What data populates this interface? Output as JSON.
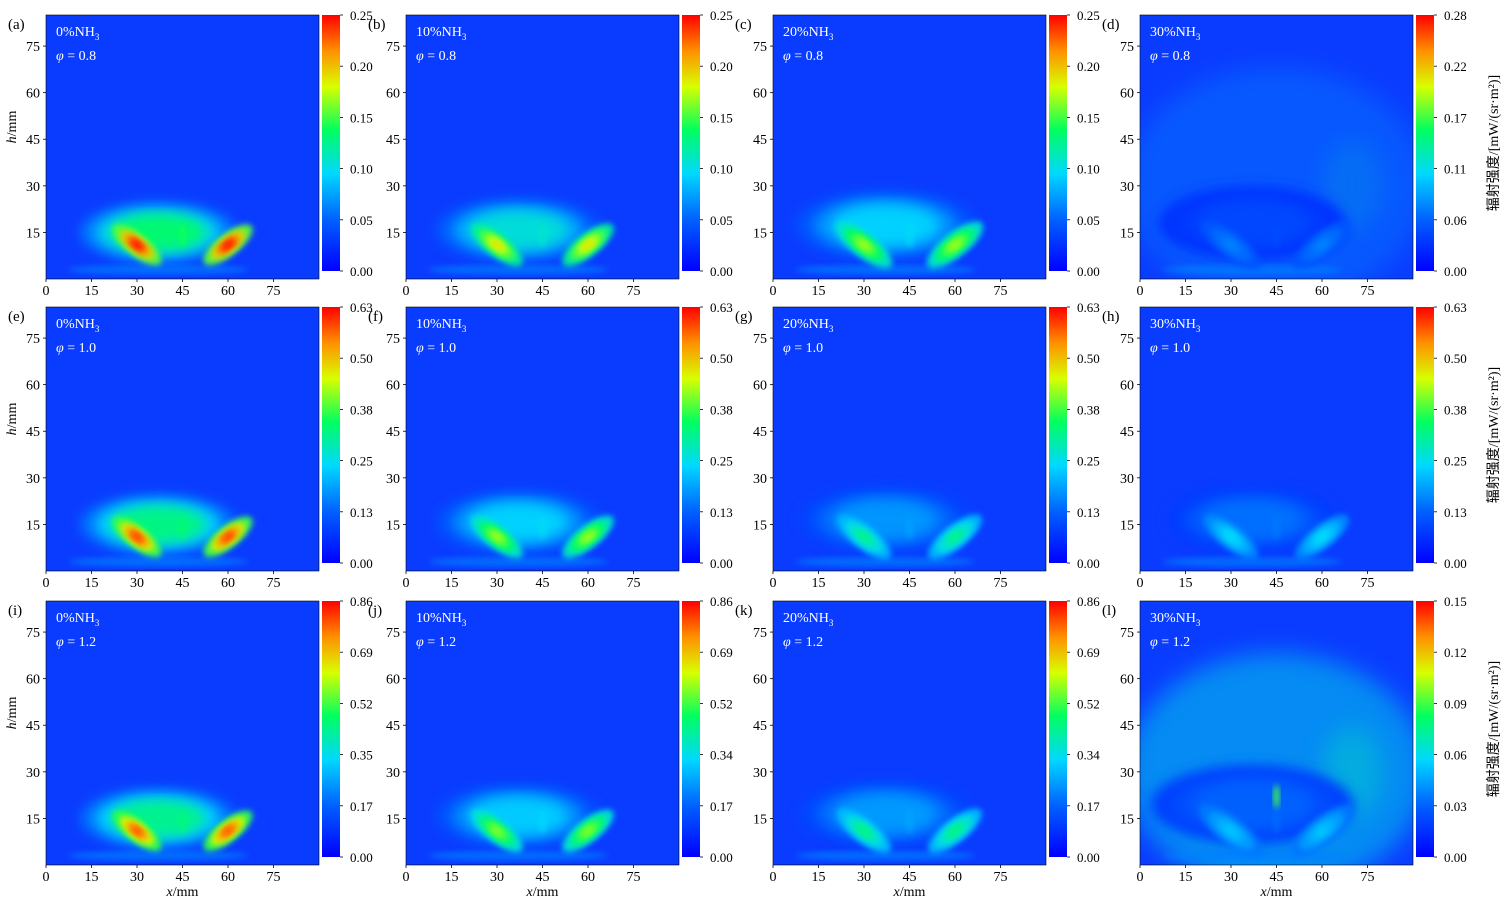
{
  "chart_data": {
    "type": "heatmap",
    "description_axes": {
      "xlabel": "x/mm",
      "ylabel": "h/mm"
    },
    "x_ticks": [
      0,
      15,
      30,
      45,
      60,
      75
    ],
    "y_ticks": [
      15,
      30,
      45,
      60,
      75
    ],
    "xlim": [
      0,
      90
    ],
    "ylim": [
      0,
      85
    ],
    "colorbar_label": "辐射强度/[mW/(sr·m²)]",
    "colormap": [
      "#0000ff",
      "#00c8ff",
      "#00ff66",
      "#ffff00",
      "#ff8800",
      "#ff0000"
    ],
    "panels": [
      {
        "label": "(a)",
        "nh3": "0%NH",
        "nh3_sub": "3",
        "phi": "= 0.8",
        "cbar": [
          "0.00",
          "0.05",
          "0.10",
          "0.15",
          "0.20",
          "0.25"
        ],
        "row": 0,
        "col": 0,
        "peak": 0.92,
        "spread": 1.0,
        "diffuse": 0.0,
        "show_cbar_label": false,
        "show_ylabel": true,
        "show_xlabel": false
      },
      {
        "label": "(b)",
        "nh3": "10%NH",
        "nh3_sub": "3",
        "phi": "= 0.8",
        "cbar": [
          "0.00",
          "0.05",
          "0.10",
          "0.15",
          "0.20",
          "0.25"
        ],
        "row": 0,
        "col": 1,
        "peak": 0.7,
        "spread": 1.05,
        "diffuse": 0.0,
        "show_cbar_label": false,
        "show_ylabel": false,
        "show_xlabel": false
      },
      {
        "label": "(c)",
        "nh3": "20%NH",
        "nh3_sub": "3",
        "phi": "= 0.8",
        "cbar": [
          "0.00",
          "0.05",
          "0.10",
          "0.15",
          "0.20",
          "0.25"
        ],
        "row": 0,
        "col": 2,
        "peak": 0.62,
        "spread": 1.15,
        "diffuse": 0.0,
        "show_cbar_label": false,
        "show_ylabel": false,
        "show_xlabel": false
      },
      {
        "label": "(d)",
        "nh3": "30%NH",
        "nh3_sub": "3",
        "phi": "= 0.8",
        "cbar": [
          "0.00",
          "0.06",
          "0.11",
          "0.17",
          "0.22",
          "0.28"
        ],
        "row": 0,
        "col": 3,
        "peak": 0.2,
        "spread": 1.2,
        "diffuse": 0.15,
        "show_cbar_label": true,
        "show_ylabel": false,
        "show_xlabel": false
      },
      {
        "label": "(e)",
        "nh3": "0%NH",
        "nh3_sub": "3",
        "phi": "= 1.0",
        "cbar": [
          "0.00",
          "0.13",
          "0.25",
          "0.38",
          "0.50",
          "0.63"
        ],
        "row": 1,
        "col": 0,
        "peak": 0.88,
        "spread": 1.0,
        "diffuse": 0.0,
        "show_cbar_label": false,
        "show_ylabel": true,
        "show_xlabel": false
      },
      {
        "label": "(f)",
        "nh3": "10%NH",
        "nh3_sub": "3",
        "phi": "= 1.0",
        "cbar": [
          "0.00",
          "0.13",
          "0.25",
          "0.38",
          "0.50",
          "0.63"
        ],
        "row": 1,
        "col": 1,
        "peak": 0.62,
        "spread": 1.05,
        "diffuse": 0.0,
        "show_cbar_label": false,
        "show_ylabel": false,
        "show_xlabel": false
      },
      {
        "label": "(g)",
        "nh3": "20%NH",
        "nh3_sub": "3",
        "phi": "= 1.0",
        "cbar": [
          "0.00",
          "0.13",
          "0.25",
          "0.38",
          "0.50",
          "0.63"
        ],
        "row": 1,
        "col": 2,
        "peak": 0.45,
        "spread": 1.1,
        "diffuse": 0.0,
        "show_cbar_label": false,
        "show_ylabel": false,
        "show_xlabel": false
      },
      {
        "label": "(h)",
        "nh3": "30%NH",
        "nh3_sub": "3",
        "phi": "= 1.0",
        "cbar": [
          "0.00",
          "0.13",
          "0.25",
          "0.38",
          "0.50",
          "0.63"
        ],
        "row": 1,
        "col": 3,
        "peak": 0.34,
        "spread": 1.1,
        "diffuse": 0.0,
        "show_cbar_label": true,
        "show_ylabel": false,
        "show_xlabel": false
      },
      {
        "label": "(i)",
        "nh3": "0%NH",
        "nh3_sub": "3",
        "phi": "= 1.2",
        "cbar": [
          "0.00",
          "0.17",
          "0.35",
          "0.52",
          "0.69",
          "0.86"
        ],
        "row": 2,
        "col": 0,
        "peak": 0.86,
        "spread": 1.0,
        "diffuse": 0.0,
        "show_cbar_label": false,
        "show_ylabel": true,
        "show_xlabel": true
      },
      {
        "label": "(j)",
        "nh3": "10%NH",
        "nh3_sub": "3",
        "phi": "= 1.2",
        "cbar": [
          "0.00",
          "0.17",
          "0.34",
          "0.52",
          "0.69",
          "0.86"
        ],
        "row": 2,
        "col": 1,
        "peak": 0.6,
        "spread": 1.05,
        "diffuse": 0.0,
        "show_cbar_label": false,
        "show_ylabel": false,
        "show_xlabel": true
      },
      {
        "label": "(k)",
        "nh3": "20%NH",
        "nh3_sub": "3",
        "phi": "= 1.2",
        "cbar": [
          "0.00",
          "0.17",
          "0.34",
          "0.52",
          "0.69",
          "0.86"
        ],
        "row": 2,
        "col": 2,
        "peak": 0.46,
        "spread": 1.1,
        "diffuse": 0.0,
        "show_cbar_label": false,
        "show_ylabel": false,
        "show_xlabel": true
      },
      {
        "label": "(l)",
        "nh3": "30%NH",
        "nh3_sub": "3",
        "phi": "= 1.2",
        "cbar": [
          "0.00",
          "0.03",
          "0.06",
          "0.09",
          "0.12",
          "0.15"
        ],
        "row": 2,
        "col": 3,
        "peak": 0.3,
        "spread": 1.3,
        "diffuse": 0.35,
        "show_cbar_label": true,
        "show_ylabel": false,
        "show_xlabel": true
      }
    ]
  }
}
